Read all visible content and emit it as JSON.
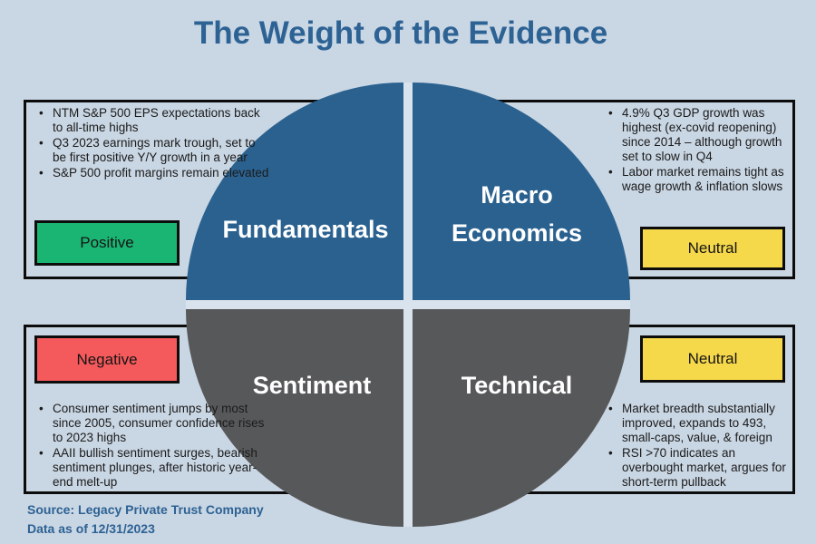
{
  "title": "The Weight of the Evidence",
  "colors": {
    "background": "#c9d6e3",
    "stripe": "#d8e3ee",
    "blue": "#2a618f",
    "gray": "#57585a",
    "positive": "#1bb573",
    "neutral": "#f6d84b",
    "negative": "#f4595b",
    "title_text": "#2d6294",
    "border": "#0c0c0c"
  },
  "quadrants": {
    "fundamentals": {
      "label": "Fundamentals",
      "rating": "Positive",
      "bullets": [
        "NTM S&P 500 EPS expectations back to all-time highs",
        "Q3 2023 earnings mark trough, set to be first positive Y/Y growth in a year",
        "S&P 500 profit margins remain elevated"
      ]
    },
    "macro": {
      "label_line1": "Macro",
      "label_line2": "Economics",
      "rating": "Neutral",
      "bullets": [
        "4.9% Q3 GDP growth was highest (ex-covid reopening) since 2014 – although growth set to slow in Q4",
        "Labor market remains tight as wage growth & inflation slows"
      ]
    },
    "sentiment": {
      "label": "Sentiment",
      "rating": "Negative",
      "bullets": [
        "Consumer sentiment jumps by most  since 2005, consumer confidence rises to 2023 highs",
        "AAII bullish sentiment surges, bearish sentiment plunges, after historic year-end melt-up"
      ]
    },
    "technical": {
      "label": "Technical",
      "rating": "Neutral",
      "bullets": [
        "Market breadth substantially improved, expands to 493, small-caps, value, & foreign",
        "RSI >70 indicates an overbought market, argues for short-term pullback"
      ]
    }
  },
  "footer": {
    "source": "Source: Legacy Private Trust Company",
    "data_as_of": "Data as of 12/31/2023"
  }
}
